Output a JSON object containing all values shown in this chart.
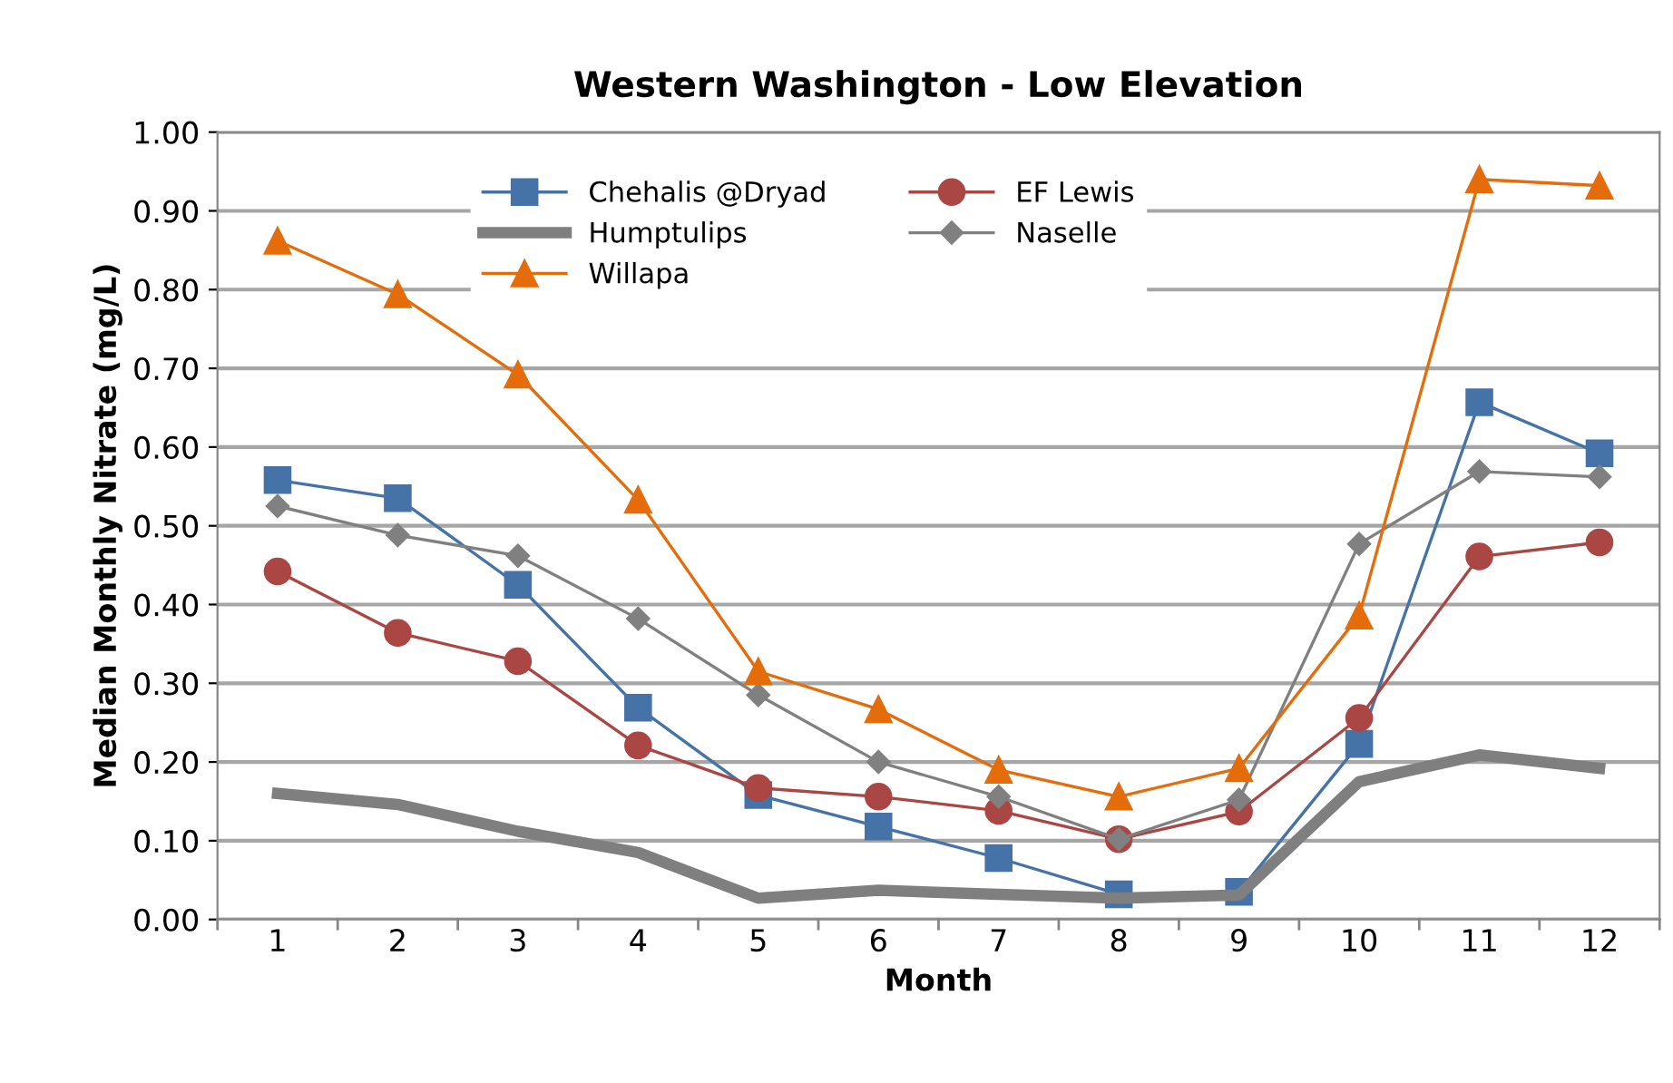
{
  "chart_data": {
    "type": "line",
    "title": "Western Washington - Low Elevation",
    "xlabel": "Month",
    "ylabel": "Median Monthly Nitrate (mg/L)",
    "categories": [
      "1",
      "2",
      "3",
      "4",
      "5",
      "6",
      "7",
      "8",
      "9",
      "10",
      "11",
      "12"
    ],
    "series": [
      {
        "name": "Chehalis @Dryad",
        "color": "#4572a7",
        "marker": "square",
        "values": [
          0.558,
          0.535,
          0.425,
          0.269,
          0.158,
          0.118,
          0.078,
          0.032,
          0.035,
          0.223,
          0.657,
          0.592
        ]
      },
      {
        "name": "EF Lewis",
        "color": "#aa4643",
        "marker": "circle",
        "values": [
          0.442,
          0.364,
          0.328,
          0.221,
          0.167,
          0.156,
          0.138,
          0.102,
          0.137,
          0.256,
          0.461,
          0.479
        ]
      },
      {
        "name": "Humptulips",
        "color": "#7f7f7f",
        "marker": "none",
        "values": [
          0.16,
          0.146,
          0.112,
          0.085,
          0.027,
          0.037,
          0.032,
          0.027,
          0.031,
          0.175,
          0.209,
          0.192
        ]
      },
      {
        "name": "Naselle",
        "color": "#808080",
        "marker": "diamond",
        "values": [
          0.525,
          0.488,
          0.462,
          0.382,
          0.285,
          0.2,
          0.156,
          0.102,
          0.152,
          0.477,
          0.569,
          0.562
        ]
      },
      {
        "name": "Willapa",
        "color": "#e46c0a",
        "marker": "triangle",
        "values": [
          0.862,
          0.794,
          0.692,
          0.533,
          0.315,
          0.267,
          0.19,
          0.156,
          0.192,
          0.386,
          0.94,
          0.932
        ]
      }
    ],
    "ylim": [
      0,
      1
    ],
    "yticks": [
      {
        "value": 0,
        "label": "0.00"
      },
      {
        "value": 0.1,
        "label": "0.10"
      },
      {
        "value": 0.2,
        "label": "0.20"
      },
      {
        "value": 0.3,
        "label": "0.30"
      },
      {
        "value": 0.4,
        "label": "0.40"
      },
      {
        "value": 0.5,
        "label": "0.50"
      },
      {
        "value": 0.6,
        "label": "0.60"
      },
      {
        "value": 0.7,
        "label": "0.70"
      },
      {
        "value": 0.8,
        "label": "0.80"
      },
      {
        "value": 0.9,
        "label": "0.90"
      },
      {
        "value": 1,
        "label": "1.00"
      }
    ],
    "grid": "y",
    "legend": "top",
    "line_style": "solid"
  }
}
